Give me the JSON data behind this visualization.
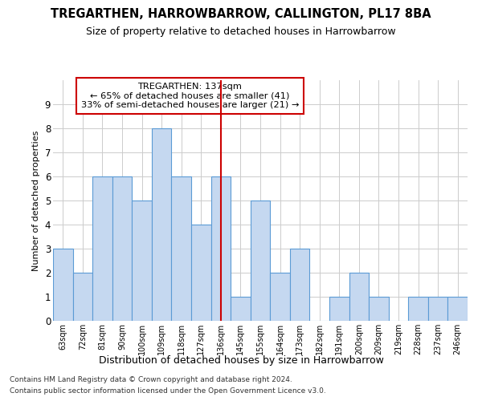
{
  "title": "TREGARTHEN, HARROWBARROW, CALLINGTON, PL17 8BA",
  "subtitle": "Size of property relative to detached houses in Harrowbarrow",
  "xlabel": "Distribution of detached houses by size in Harrowbarrow",
  "ylabel": "Number of detached properties",
  "footer1": "Contains HM Land Registry data © Crown copyright and database right 2024.",
  "footer2": "Contains public sector information licensed under the Open Government Licence v3.0.",
  "annotation_title": "TREGARTHEN: 137sqm",
  "annotation_line1": "← 65% of detached houses are smaller (41)",
  "annotation_line2": "33% of semi-detached houses are larger (21) →",
  "categories": [
    "63sqm",
    "72sqm",
    "81sqm",
    "90sqm",
    "100sqm",
    "109sqm",
    "118sqm",
    "127sqm",
    "136sqm",
    "145sqm",
    "155sqm",
    "164sqm",
    "173sqm",
    "182sqm",
    "191sqm",
    "200sqm",
    "209sqm",
    "219sqm",
    "228sqm",
    "237sqm",
    "246sqm"
  ],
  "values": [
    3,
    2,
    6,
    6,
    5,
    8,
    6,
    4,
    6,
    1,
    5,
    2,
    3,
    0,
    1,
    2,
    1,
    0,
    1,
    1,
    1
  ],
  "bar_color": "#c5d8f0",
  "bar_edge_color": "#5b9bd5",
  "highlight_index": 8,
  "highlight_line_color": "#cc0000",
  "annotation_box_color": "#cc0000",
  "ylim": [
    0,
    10
  ],
  "yticks": [
    0,
    1,
    2,
    3,
    4,
    5,
    6,
    7,
    8,
    9
  ],
  "grid_color": "#cccccc",
  "background_color": "#ffffff"
}
